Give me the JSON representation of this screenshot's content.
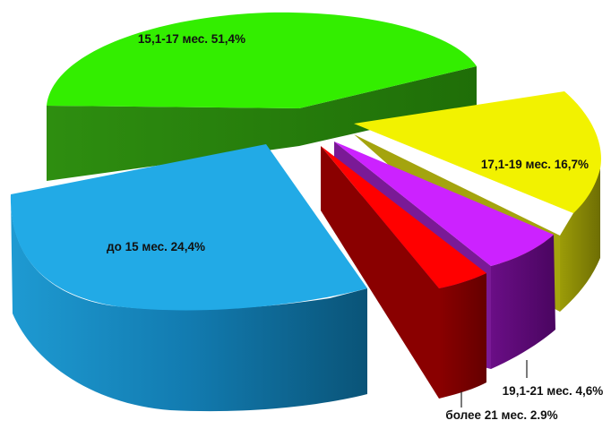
{
  "chart_data": {
    "type": "pie",
    "variant": "exploded-3d",
    "slices": [
      {
        "label": "15,1-17 мес. 51,4%",
        "value": 51.4,
        "top_color": "#33EE00",
        "side_color": "#2A8A0E"
      },
      {
        "label": "17,1-19 мес. 16,7%",
        "value": 16.7,
        "top_color": "#F2F200",
        "side_color": "#8C8C0A"
      },
      {
        "label": "19,1-21 мес. 4,6%",
        "value": 4.6,
        "top_color": "#CC22FF",
        "side_color": "#5A0A72"
      },
      {
        "label": "более 21 мес. 2.9%",
        "value": 2.9,
        "top_color": "#FF0000",
        "side_color": "#7A0000"
      },
      {
        "label": "до 15 мес. 24,4%",
        "value": 24.4,
        "top_color": "#22AAE6",
        "side_color": "#10648E"
      }
    ]
  }
}
